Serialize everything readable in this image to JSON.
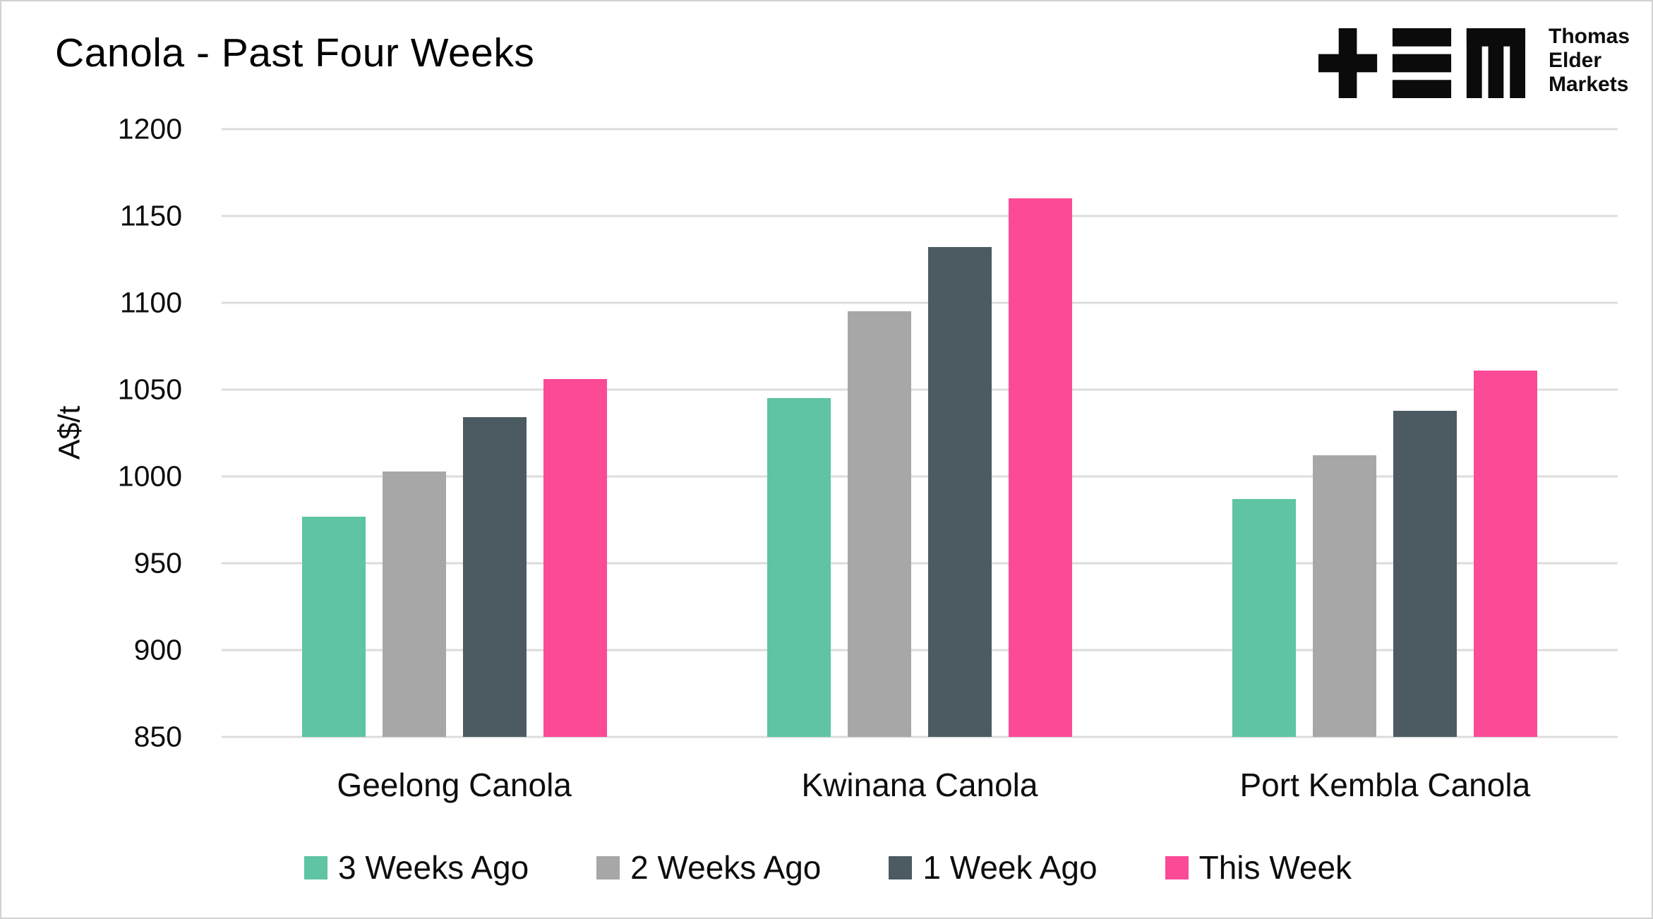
{
  "title": "Canola - Past Four Weeks",
  "logo": {
    "name": "Thomas Elder Markets",
    "lines": [
      "Thomas",
      "Elder",
      "Markets"
    ]
  },
  "chart_data": {
    "type": "bar",
    "title": "Canola - Past Four Weeks",
    "xlabel": "",
    "ylabel": "A$/t",
    "ylim": [
      850,
      1200
    ],
    "yticks": [
      850,
      900,
      950,
      1000,
      1050,
      1100,
      1150,
      1200
    ],
    "grid": true,
    "legend_position": "bottom",
    "categories": [
      "Geelong Canola",
      "Kwinana Canola",
      "Port Kembla Canola"
    ],
    "series": [
      {
        "name": "3 Weeks Ago",
        "color": "#5EC4A4",
        "values": [
          977,
          1045,
          987
        ]
      },
      {
        "name": "2 Weeks Ago",
        "color": "#A7A7A7",
        "values": [
          1003,
          1095,
          1012
        ]
      },
      {
        "name": "1 Week Ago",
        "color": "#4C5B61",
        "values": [
          1034,
          1132,
          1038
        ]
      },
      {
        "name": "This Week",
        "color": "#FB4A96",
        "values": [
          1056,
          1160,
          1061
        ]
      }
    ],
    "colors": {
      "gridline": "#dcdcdc",
      "text": "#0d0d0d",
      "background": "#ffffff"
    }
  }
}
